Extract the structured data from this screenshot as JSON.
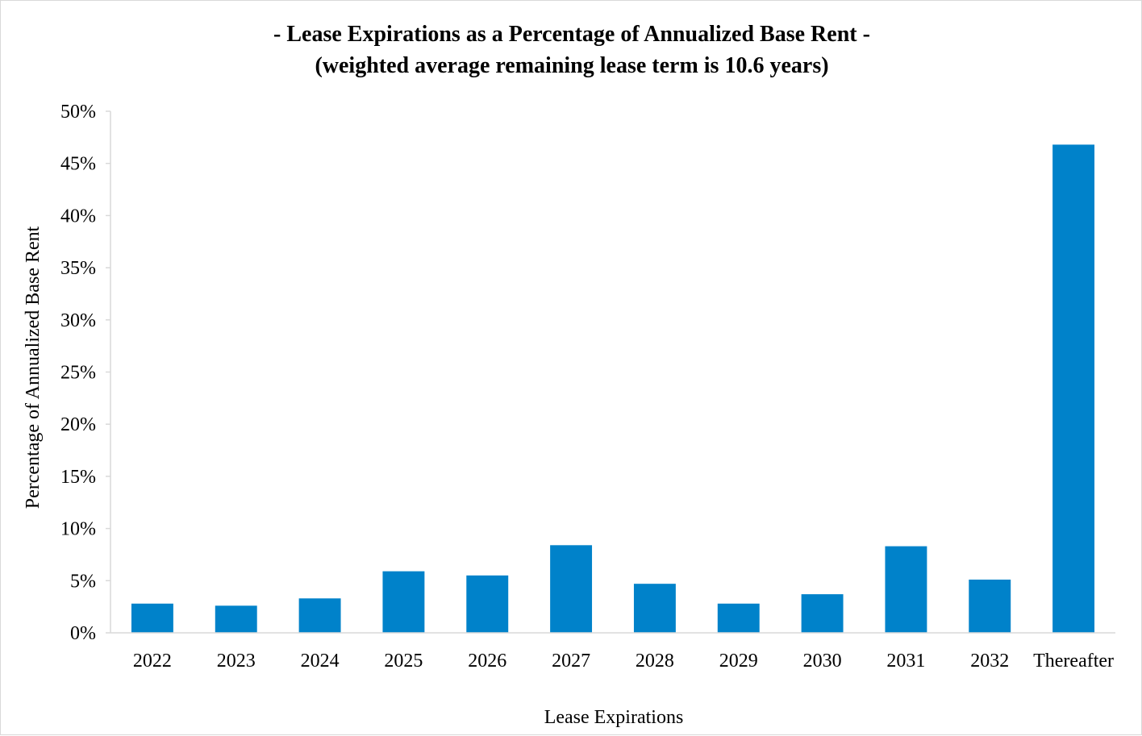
{
  "chart_data": {
    "type": "bar",
    "title": "- Lease Expirations as a Percentage of Annualized Base Rent -",
    "subtitle": "(weighted average remaining lease term is 10.6 years)",
    "xlabel": "Lease Expirations",
    "ylabel": "Percentage of Annualized Base Rent",
    "categories": [
      "2022",
      "2023",
      "2024",
      "2025",
      "2026",
      "2027",
      "2028",
      "2029",
      "2030",
      "2031",
      "2032",
      "Thereafter"
    ],
    "values": [
      2.8,
      2.6,
      3.3,
      5.9,
      5.5,
      8.4,
      4.7,
      2.8,
      3.7,
      8.3,
      5.1,
      46.8
    ],
    "ylim": [
      0,
      50
    ],
    "y_ticks": [
      0,
      5,
      10,
      15,
      20,
      25,
      30,
      35,
      40,
      45,
      50
    ],
    "y_tick_format": "percent",
    "bar_color": "#0082ca",
    "axis_color": "#d9d9d9",
    "grid": false,
    "legend": "none"
  }
}
